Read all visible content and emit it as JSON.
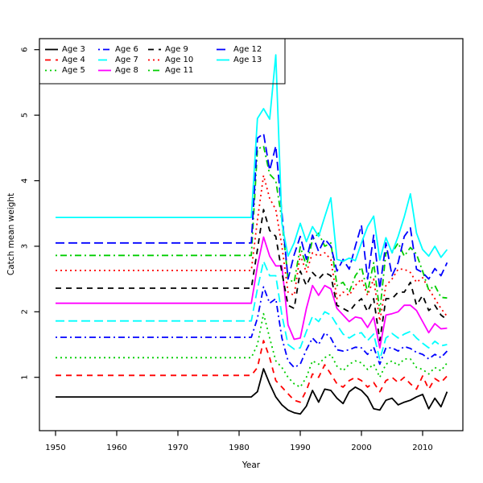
{
  "chart_data": {
    "type": "line",
    "title": "",
    "xlabel": "Year",
    "ylabel": "Catch mean weight",
    "x_ticks": [
      1950,
      1960,
      1970,
      1980,
      1990,
      2000,
      2010
    ],
    "y_ticks": [
      1,
      2,
      3,
      4,
      5,
      6
    ],
    "xlim": [
      1947.4,
      2016.6
    ],
    "ylim": [
      0.18,
      6.17
    ],
    "grid": false,
    "legend_position": "top-left",
    "legend_columns": 4,
    "year_start": 1950,
    "flat_through": 1982,
    "varying_start": 1983,
    "year_end": 2014,
    "axis_color": "#000000",
    "background": "#FFFFFF",
    "series": [
      {
        "name": "Age 3",
        "color": "#000000",
        "dash": "solid",
        "flat_value": 0.7,
        "values_1983_2014": [
          0.78,
          1.13,
          0.9,
          0.7,
          0.58,
          0.5,
          0.46,
          0.44,
          0.56,
          0.8,
          0.62,
          0.82,
          0.8,
          0.68,
          0.6,
          0.78,
          0.85,
          0.8,
          0.7,
          0.52,
          0.5,
          0.65,
          0.68,
          0.58,
          0.62,
          0.65,
          0.7,
          0.74,
          0.52,
          0.68,
          0.55,
          0.78
        ]
      },
      {
        "name": "Age 4",
        "color": "#FF0000",
        "dash": "dashed",
        "flat_value": 1.03,
        "values_1983_2014": [
          1.15,
          1.56,
          1.3,
          0.95,
          0.85,
          0.75,
          0.65,
          0.62,
          0.8,
          1.05,
          1.0,
          1.19,
          1.05,
          0.9,
          0.85,
          0.95,
          1.0,
          0.95,
          0.85,
          0.92,
          0.78,
          0.95,
          1.0,
          0.92,
          1.0,
          0.9,
          0.82,
          1.02,
          0.82,
          0.98,
          0.92,
          1.02
        ]
      },
      {
        "name": "Age 5",
        "color": "#00CD00",
        "dash": "dotted",
        "flat_value": 1.3,
        "values_1983_2014": [
          1.5,
          1.97,
          1.6,
          1.25,
          1.15,
          1.0,
          0.9,
          0.85,
          1.0,
          1.25,
          1.2,
          1.3,
          1.35,
          1.17,
          1.1,
          1.2,
          1.25,
          1.22,
          1.12,
          1.2,
          1.0,
          1.2,
          1.25,
          1.18,
          1.28,
          1.28,
          1.15,
          1.12,
          1.05,
          1.15,
          1.1,
          1.22
        ]
      },
      {
        "name": "Age 6",
        "color": "#0000FF",
        "dash": "dotdash",
        "flat_value": 1.61,
        "values_1983_2014": [
          1.9,
          2.38,
          2.13,
          2.2,
          1.6,
          1.25,
          1.15,
          1.2,
          1.42,
          1.6,
          1.5,
          1.68,
          1.6,
          1.42,
          1.4,
          1.42,
          1.46,
          1.45,
          1.35,
          1.46,
          1.2,
          1.45,
          1.45,
          1.4,
          1.47,
          1.44,
          1.38,
          1.35,
          1.28,
          1.35,
          1.3,
          1.4
        ]
      },
      {
        "name": "Age 7",
        "color": "#00FFFF",
        "dash": "longdash",
        "flat_value": 1.86,
        "values_1983_2014": [
          2.35,
          2.77,
          2.55,
          2.55,
          1.95,
          1.5,
          1.43,
          1.45,
          1.7,
          1.93,
          1.85,
          2.0,
          1.95,
          1.8,
          1.66,
          1.6,
          1.66,
          1.68,
          1.56,
          1.66,
          1.27,
          1.6,
          1.67,
          1.6,
          1.66,
          1.7,
          1.6,
          1.52,
          1.45,
          1.55,
          1.48,
          1.5
        ]
      },
      {
        "name": "Age 8",
        "color": "#FF00FF",
        "dash": "solid",
        "flat_value": 2.13,
        "values_1983_2014": [
          2.7,
          3.14,
          2.85,
          2.7,
          2.7,
          1.8,
          1.58,
          1.6,
          2.05,
          2.4,
          2.25,
          2.4,
          2.35,
          2.05,
          1.95,
          1.85,
          1.92,
          1.9,
          1.76,
          1.92,
          1.45,
          1.95,
          1.97,
          2.0,
          2.1,
          2.1,
          2.02,
          1.85,
          1.68,
          1.82,
          1.74,
          1.75
        ]
      },
      {
        "name": "Age 9",
        "color": "#000000",
        "dash": "dashed",
        "flat_value": 2.36,
        "values_1983_2014": [
          2.95,
          3.56,
          3.24,
          3.15,
          2.6,
          2.1,
          2.05,
          2.62,
          2.4,
          2.6,
          2.5,
          2.6,
          2.55,
          2.1,
          2.05,
          2.0,
          2.12,
          2.2,
          2.0,
          2.2,
          1.56,
          2.2,
          2.2,
          2.3,
          2.3,
          2.45,
          2.1,
          2.25,
          2.02,
          2.1,
          1.95,
          1.88
        ]
      },
      {
        "name": "Age 10",
        "color": "#FF0000",
        "dash": "dotted",
        "flat_value": 2.63,
        "values_1983_2014": [
          3.4,
          4.08,
          3.73,
          3.56,
          3.0,
          2.3,
          2.25,
          2.87,
          2.6,
          2.9,
          2.85,
          2.9,
          2.8,
          2.2,
          2.3,
          2.25,
          2.4,
          2.5,
          2.25,
          2.5,
          1.86,
          2.4,
          2.5,
          2.65,
          2.65,
          2.6,
          2.45,
          2.52,
          2.35,
          2.2,
          2.05,
          1.93
        ]
      },
      {
        "name": "Age 11",
        "color": "#00CD00",
        "dash": "dotdash",
        "flat_value": 2.86,
        "values_1983_2014": [
          4.48,
          4.53,
          4.1,
          4.0,
          3.4,
          2.5,
          2.45,
          2.99,
          2.7,
          3.1,
          3.2,
          3.0,
          3.05,
          2.4,
          2.45,
          2.3,
          2.55,
          2.68,
          2.3,
          2.75,
          2.0,
          2.9,
          2.9,
          3.05,
          2.85,
          2.98,
          2.88,
          2.62,
          2.33,
          2.4,
          2.22,
          2.21
        ]
      },
      {
        "name": "Age 12",
        "color": "#0000FF",
        "dash": "longdash",
        "flat_value": 3.05,
        "values_1983_2014": [
          4.65,
          4.72,
          4.16,
          4.53,
          3.5,
          2.5,
          2.87,
          3.15,
          2.8,
          3.17,
          2.92,
          3.11,
          3.0,
          2.62,
          2.8,
          2.65,
          3.0,
          3.32,
          2.5,
          3.17,
          2.35,
          3.05,
          2.55,
          2.75,
          3.15,
          3.28,
          2.65,
          2.6,
          2.5,
          2.66,
          2.55,
          2.75
        ]
      },
      {
        "name": "Age 13",
        "color": "#00FFFF",
        "dash": "solid",
        "flat_value": 3.44,
        "values_1983_2014": [
          4.95,
          5.1,
          4.94,
          5.92,
          3.35,
          2.85,
          3.05,
          3.35,
          3.07,
          3.3,
          3.15,
          3.45,
          3.74,
          2.8,
          2.77,
          2.82,
          2.78,
          3.05,
          3.3,
          3.46,
          2.79,
          3.13,
          2.9,
          3.15,
          3.45,
          3.8,
          3.2,
          2.95,
          2.85,
          3.0,
          2.83,
          2.95
        ]
      }
    ]
  }
}
